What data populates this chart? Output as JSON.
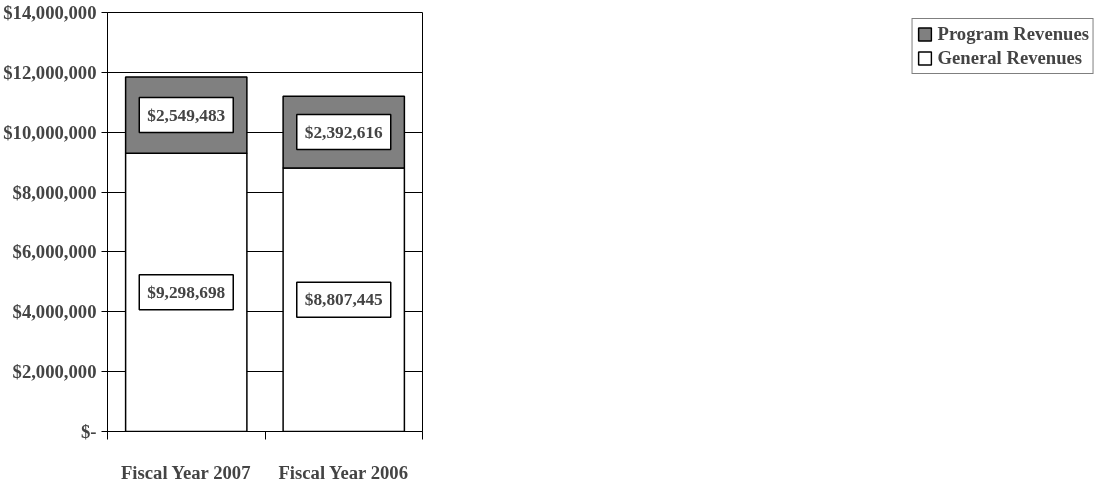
{
  "chart_data": {
    "type": "bar",
    "stacked": true,
    "categories": [
      "Fiscal Year 2007",
      "Fiscal Year 2006"
    ],
    "series": [
      {
        "name": "General Revenues",
        "color": "#ffffff",
        "values": [
          9298698,
          8807445
        ],
        "value_labels": [
          "$9,298,698",
          "$8,807,445"
        ]
      },
      {
        "name": "Program Revenues",
        "color": "#808080",
        "values": [
          2549483,
          2392616
        ],
        "value_labels": [
          "$2,549,483",
          "$2,392,616"
        ]
      }
    ],
    "ylim": [
      0,
      14000000
    ],
    "yticks": [
      {
        "value": 0,
        "label": "$-"
      },
      {
        "value": 2000000,
        "label": "$2,000,000"
      },
      {
        "value": 4000000,
        "label": "$4,000,000"
      },
      {
        "value": 6000000,
        "label": "$6,000,000"
      },
      {
        "value": 8000000,
        "label": "$8,000,000"
      },
      {
        "value": 10000000,
        "label": "$10,000,000"
      },
      {
        "value": 12000000,
        "label": "$12,000,000"
      },
      {
        "value": 14000000,
        "label": "$14,000,000"
      }
    ],
    "grid": "y",
    "legend": "right"
  }
}
